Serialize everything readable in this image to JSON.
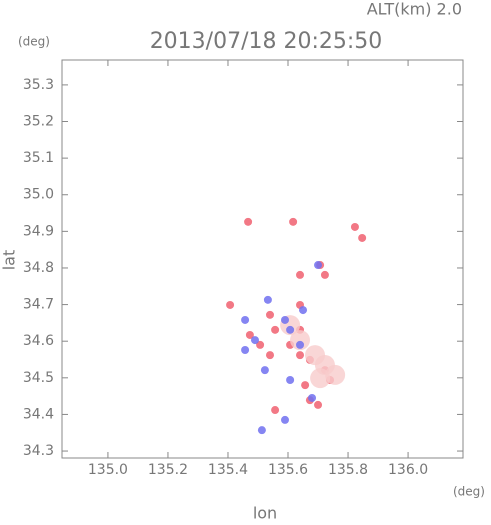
{
  "chart_data": {
    "type": "scatter",
    "title": "2013/07/18 20:25:50",
    "annotation": "ALT(km) 2.0",
    "y_unit": "(deg)",
    "x_unit": "(deg)",
    "x_label": "lon",
    "y_label": "lat",
    "xlim": [
      134.847,
      136.183
    ],
    "ylim": [
      34.281,
      35.368
    ],
    "xticks": [
      {
        "value": 135.0,
        "label": "135.0"
      },
      135.2,
      135.4,
      135.6,
      135.8,
      {
        "value": 136.0,
        "label": "136.0"
      }
    ],
    "yticks": [
      34.3,
      34.4,
      34.5,
      34.6,
      34.7,
      34.8,
      34.9,
      {
        "value": 35.0,
        "label": "35.0"
      },
      35.1,
      35.2,
      35.3
    ],
    "series": [
      {
        "color": "#f06070",
        "x": [
          135.467,
          135.617,
          135.823,
          135.847,
          135.707,
          135.723,
          135.64,
          135.407,
          135.54,
          135.64,
          135.557,
          135.607,
          135.64,
          135.54,
          135.673,
          135.723,
          135.74,
          135.657,
          135.7,
          135.673,
          135.557,
          135.64,
          135.473,
          135.507
        ],
        "values": [
          34.926,
          34.926,
          34.912,
          34.882,
          34.808,
          34.781,
          34.781,
          34.699,
          34.672,
          34.699,
          34.631,
          34.59,
          34.562,
          34.562,
          34.549,
          34.521,
          34.494,
          34.48,
          34.426,
          34.439,
          34.412,
          34.631,
          34.617,
          34.59
        ]
      },
      {
        "color": "#f8cccc",
        "x": [
          135.64,
          135.69,
          135.723,
          135.757,
          135.707,
          135.607
        ],
        "values": [
          34.603,
          34.562,
          34.535,
          34.508,
          34.499,
          34.644
        ]
      },
      {
        "color": "#7070f0",
        "x": [
          135.533,
          135.65,
          135.457,
          135.59,
          135.49,
          135.607,
          135.457,
          135.64,
          135.607,
          135.59,
          135.68,
          135.523,
          135.7,
          135.513
        ],
        "values": [
          34.713,
          34.685,
          34.658,
          34.658,
          34.603,
          34.631,
          34.576,
          34.59,
          34.494,
          34.385,
          34.445,
          34.521,
          34.808,
          34.357
        ]
      }
    ]
  }
}
